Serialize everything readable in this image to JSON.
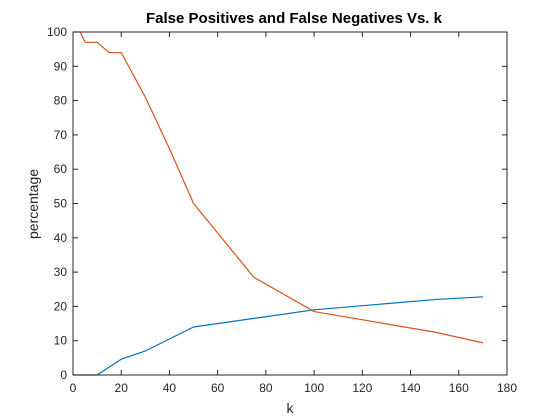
{
  "chart_data": {
    "type": "line",
    "title": "False Positives and False Negatives Vs. k",
    "xlabel": "k",
    "ylabel": "percentage",
    "xlim": [
      0,
      180
    ],
    "ylim": [
      0,
      100
    ],
    "xticks": [
      0,
      20,
      40,
      60,
      80,
      100,
      120,
      140,
      160,
      180
    ],
    "yticks": [
      0,
      10,
      20,
      30,
      40,
      50,
      60,
      70,
      80,
      90,
      100
    ],
    "grid": false,
    "legend": "none",
    "series": [
      {
        "color": "#0072BD",
        "x": [
          0,
          5,
          10,
          20,
          30,
          40,
          50,
          75,
          100,
          125,
          150,
          170
        ],
        "y": [
          0,
          0,
          0,
          4.6,
          7,
          10.5,
          14,
          16.5,
          19,
          20.5,
          22,
          22.8
        ]
      },
      {
        "color": "#D95319",
        "x": [
          0,
          3,
          5,
          10,
          15,
          20,
          30,
          40,
          50,
          75,
          100,
          125,
          150,
          170
        ],
        "y": [
          100,
          100,
          97,
          97,
          94,
          94,
          81,
          66,
          50,
          28.5,
          18.5,
          15.5,
          12.5,
          9.4
        ]
      }
    ]
  }
}
